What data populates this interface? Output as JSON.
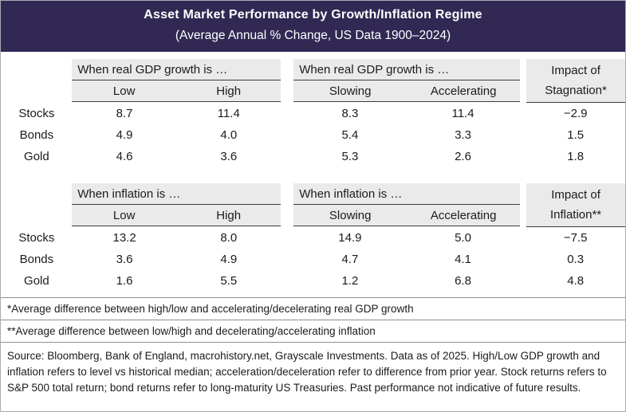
{
  "header": {
    "title": "Asset Market Performance by Growth/Inflation Regime",
    "subtitle": "(Average Annual % Change, US Data 1900–2024)",
    "bg_color": "#312853"
  },
  "chart_data": [
    {
      "type": "table",
      "group_headers": [
        "When real GDP growth is …",
        "When real GDP growth is …"
      ],
      "impact_header": [
        "Impact of",
        "Stagnation*"
      ],
      "columns": [
        "Low",
        "High",
        "Slowing",
        "Accelerating"
      ],
      "rows": [
        {
          "label": "Stocks",
          "values": [
            "8.7",
            "11.4",
            "8.3",
            "11.4",
            "−2.9"
          ]
        },
        {
          "label": "Bonds",
          "values": [
            "4.9",
            "4.0",
            "5.4",
            "3.3",
            "1.5"
          ]
        },
        {
          "label": "Gold",
          "values": [
            "4.6",
            "3.6",
            "5.3",
            "2.6",
            "1.8"
          ]
        }
      ]
    },
    {
      "type": "table",
      "group_headers": [
        "When inflation is …",
        "When inflation is …"
      ],
      "impact_header": [
        "Impact of",
        "Inflation**"
      ],
      "columns": [
        "Low",
        "High",
        "Slowing",
        "Accelerating"
      ],
      "rows": [
        {
          "label": "Stocks",
          "values": [
            "13.2",
            "8.0",
            "14.9",
            "5.0",
            "−7.5"
          ]
        },
        {
          "label": "Bonds",
          "values": [
            "3.6",
            "4.9",
            "4.7",
            "4.1",
            "0.3"
          ]
        },
        {
          "label": "Gold",
          "values": [
            "1.6",
            "5.5",
            "1.2",
            "6.8",
            "4.8"
          ]
        }
      ]
    }
  ],
  "footnotes": [
    "*Average difference between high/low and accelerating/decelerating real GDP growth",
    "**Average difference between low/high and decelerating/accelerating inflation"
  ],
  "source": "Source: Bloomberg, Bank of England, macrohistory.net, Grayscale Investments. Data as of 2025. High/Low GDP growth and inflation refers to level vs historical median; acceleration/deceleration refer to difference from prior year. Stock returns refers to S&P 500 total return; bond returns refer to long-maturity US Treasuries. Past performance not indicative of future results."
}
